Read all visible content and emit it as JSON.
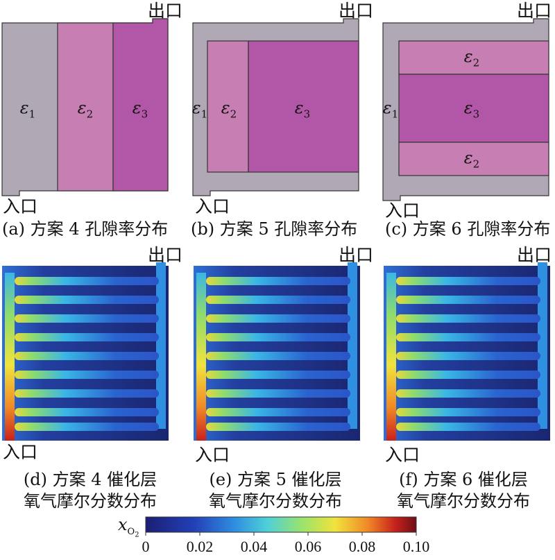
{
  "panels_top": [
    {
      "id": "a",
      "caption": "(a) 方案 4 孔隙率分布",
      "inlet": "入口",
      "outlet": "出口",
      "regions": [
        "ε1",
        "ε2",
        "ε3"
      ]
    },
    {
      "id": "b",
      "caption": "(b) 方案 5 孔隙率分布",
      "inlet": "入口",
      "outlet": "出口",
      "regions": [
        "ε1",
        "ε2",
        "ε3"
      ]
    },
    {
      "id": "c",
      "caption": "(c) 方案 6 孔隙率分布",
      "inlet": "入口",
      "outlet": "出口",
      "regions": [
        "ε1",
        "ε2",
        "ε3",
        "ε2"
      ]
    }
  ],
  "panels_bottom": [
    {
      "id": "d",
      "caption_line1": "(d) 方案 4 催化层",
      "caption_line2": "氧气摩尔分数分布",
      "inlet": "入口",
      "outlet": "出口"
    },
    {
      "id": "e",
      "caption_line1": "(e) 方案 5 催化层",
      "caption_line2": "氧气摩尔分数分布",
      "inlet": "入口",
      "outlet": "出口"
    },
    {
      "id": "f",
      "caption_line1": "(f) 方案 6 催化层",
      "caption_line2": "氧气摩尔分数分布",
      "inlet": "入口",
      "outlet": "出口"
    }
  ],
  "colorbar": {
    "label_main": "x",
    "label_sub": "O2",
    "ticks": [
      "0",
      "0.02",
      "0.04",
      "0.06",
      "0.08",
      "0.10"
    ],
    "range": [
      0,
      0.1
    ]
  },
  "colors": {
    "eps1": "#b0a8b4",
    "eps2": "#c77fb3",
    "eps3": "#b256a8",
    "field_low": "#1b2a7a",
    "field_high": "#c8201c"
  }
}
